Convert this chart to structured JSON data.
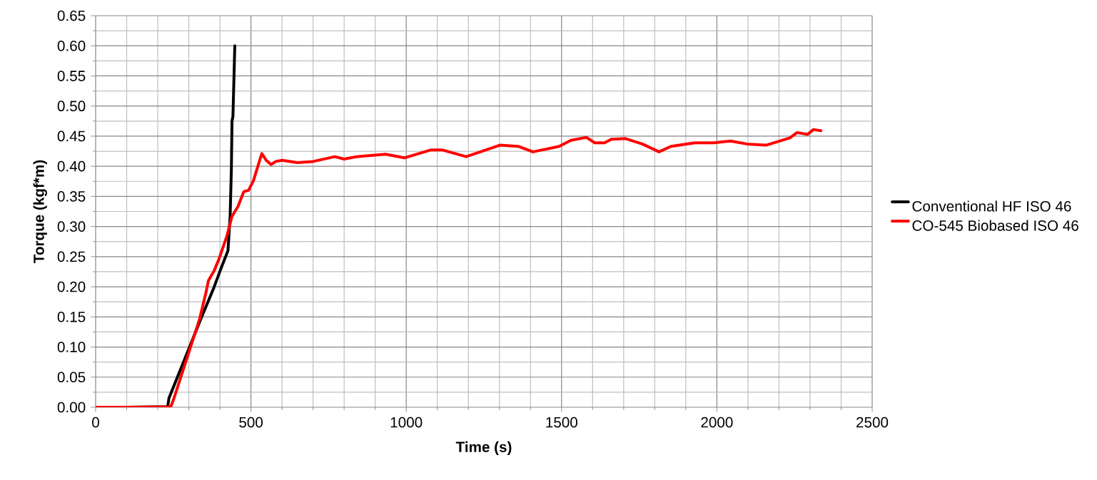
{
  "chart_data": {
    "type": "line",
    "xlabel": "Time (s)",
    "ylabel": "Torque (kgf*m)",
    "xlim": [
      0,
      2500
    ],
    "ylim": [
      0,
      0.65
    ],
    "xticks": [
      0,
      500,
      1000,
      1500,
      2000,
      2500
    ],
    "yticks": [
      {
        "value": 0,
        "label": "0.00"
      },
      {
        "value": 0.05,
        "label": "0.05"
      },
      {
        "value": 0.1,
        "label": "0.10"
      },
      {
        "value": 0.15,
        "label": "0.15"
      },
      {
        "value": 0.2,
        "label": "0.20"
      },
      {
        "value": 0.25,
        "label": "0.25"
      },
      {
        "value": 0.3,
        "label": "0.30"
      },
      {
        "value": 0.35,
        "label": "0.35"
      },
      {
        "value": 0.4,
        "label": "0.40"
      },
      {
        "value": 0.45,
        "label": "0.45"
      },
      {
        "value": 0.5,
        "label": "0.50"
      },
      {
        "value": 0.55,
        "label": "0.55"
      },
      {
        "value": 0.6,
        "label": "0.60"
      },
      {
        "value": 0.65,
        "label": "0.65"
      }
    ],
    "grid": true,
    "legend": "right",
    "marker": "none",
    "line_style": "solid",
    "series": [
      {
        "name": "Conventional HF ISO 46",
        "color": "#000000",
        "x": [
          0,
          100,
          232,
          236,
          339,
          381,
          404,
          426,
          429,
          433,
          437,
          439,
          442,
          448
        ],
        "values": [
          0,
          0,
          0.001,
          0.015,
          0.147,
          0.199,
          0.231,
          0.26,
          0.285,
          0.317,
          0.396,
          0.475,
          0.483,
          0.6
        ]
      },
      {
        "name": "CO-545 Biobased ISO 46",
        "color": "#ff0000",
        "x": [
          0,
          100,
          242,
          251,
          335,
          355,
          363,
          381,
          397,
          423,
          439,
          458,
          477,
          492,
          508,
          524,
          535,
          549,
          565,
          580,
          600,
          650,
          700,
          770,
          800,
          841,
          933,
          994,
          1078,
          1117,
          1193,
          1301,
          1362,
          1408,
          1492,
          1530,
          1580,
          1607,
          1638,
          1661,
          1706,
          1760,
          1814,
          1852,
          1929,
          1990,
          2044,
          2097,
          2158,
          2235,
          2258,
          2292,
          2311,
          2335
        ],
        "values": [
          0,
          0,
          0.001,
          0.013,
          0.147,
          0.19,
          0.21,
          0.226,
          0.246,
          0.285,
          0.317,
          0.333,
          0.358,
          0.36,
          0.376,
          0.403,
          0.421,
          0.41,
          0.403,
          0.408,
          0.41,
          0.406,
          0.408,
          0.416,
          0.412,
          0.416,
          0.42,
          0.414,
          0.427,
          0.427,
          0.416,
          0.435,
          0.433,
          0.424,
          0.433,
          0.443,
          0.448,
          0.439,
          0.439,
          0.445,
          0.446,
          0.437,
          0.424,
          0.433,
          0.439,
          0.439,
          0.442,
          0.437,
          0.435,
          0.447,
          0.456,
          0.453,
          0.461,
          0.459
        ]
      }
    ]
  }
}
